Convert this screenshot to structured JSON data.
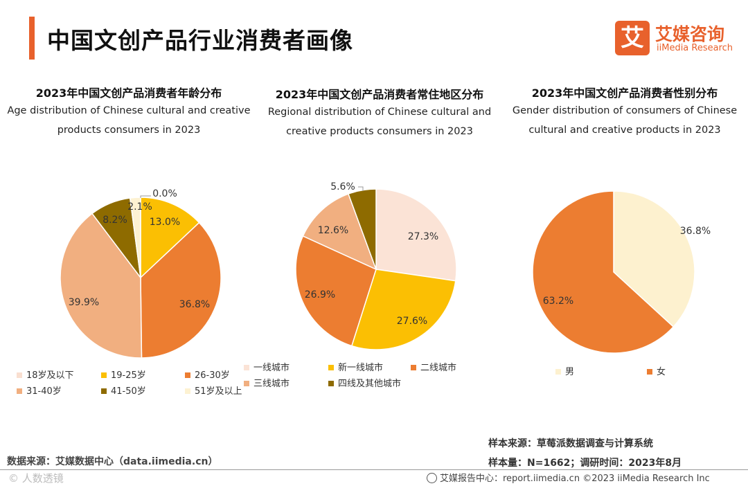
{
  "header": {
    "title": "中国文创产品行业消费者画像"
  },
  "logo": {
    "mark": "艾",
    "name_cn": "艾媒咨询",
    "name_en": "iiMedia Research"
  },
  "colors": {
    "accent": "#e8612c"
  },
  "chart_data": [
    {
      "type": "pie",
      "title": "2023年中国文创产品消费者年龄分布",
      "subtitle_line1": "Age distribution of Chinese cultural and creative",
      "subtitle_line2": "products consumers in 2023",
      "categories": [
        "18岁及以下",
        "19-25岁",
        "26-30岁",
        "31-40岁",
        "41-50岁",
        "51岁及以上"
      ],
      "values": [
        0.0,
        13.0,
        36.8,
        39.9,
        8.2,
        2.1
      ],
      "labels": [
        "0.0%",
        "13.0%",
        "36.8%",
        "39.9%",
        "8.2%",
        "2.1%"
      ],
      "colors": [
        "#f9dfd0",
        "#fbbf03",
        "#ec7d31",
        "#f1af80",
        "#8e6b00",
        "#fdf2d2"
      ]
    },
    {
      "type": "pie",
      "title": "2023年中国文创产品消费者常住地区分布",
      "subtitle_line1": "Regional distribution of Chinese cultural and",
      "subtitle_line2": "creative products consumers in 2023",
      "categories": [
        "一线城市",
        "新一线城市",
        "二线城市",
        "三线城市",
        "四线及其他城市"
      ],
      "values": [
        27.3,
        27.6,
        26.9,
        12.6,
        5.6
      ],
      "labels": [
        "27.3%",
        "27.6%",
        "26.9%",
        "12.6%",
        "5.6%"
      ],
      "colors": [
        "#fbe3d6",
        "#fbbf03",
        "#ec7d31",
        "#f1af80",
        "#8e6b00"
      ]
    },
    {
      "type": "pie",
      "title": "2023年中国文创产品消费者性别分布",
      "subtitle_line1": "Gender distribution of consumers of Chinese",
      "subtitle_line2": "cultural and creative products in 2023",
      "categories": [
        "男",
        "女"
      ],
      "values": [
        36.8,
        63.2
      ],
      "labels": [
        "36.8%",
        "63.2%"
      ],
      "colors": [
        "#fdf1cf",
        "#ec7d31"
      ]
    }
  ],
  "footer": {
    "sample_source": "样本来源：草莓派数据调查与计算系统",
    "sample_size": "样本量：N=1662；调研时间：2023年8月",
    "data_source": "数据来源：艾媒数据中心（data.iimedia.cn）",
    "watermark": "© 人数透镜",
    "report_center": "艾媒报告中心：report.iimedia.cn  ©2023  iiMedia Research  Inc"
  }
}
